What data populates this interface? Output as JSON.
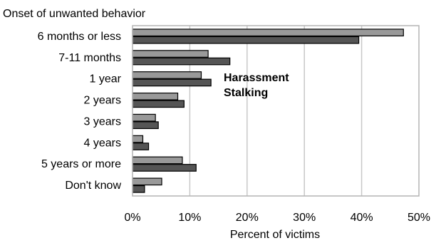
{
  "chart_data": {
    "type": "bar",
    "orientation": "horizontal",
    "title": "Onset of unwanted behavior",
    "xlabel": "Percent of victims",
    "ylabel": "",
    "categories": [
      "6 months or less",
      "7-11 months",
      "1 year",
      "2 years",
      "3 years",
      "4 years",
      "5 years or more",
      "Don't know"
    ],
    "series": [
      {
        "name": "Harassment",
        "color": "#999999",
        "values": [
          47.3,
          13.2,
          12.0,
          7.9,
          4.0,
          1.8,
          8.7,
          5.1
        ]
      },
      {
        "name": "Stalking",
        "color": "#555555",
        "values": [
          39.5,
          17.0,
          13.7,
          9.0,
          4.5,
          2.8,
          11.1,
          2.1
        ]
      }
    ],
    "xlim": [
      0,
      50
    ],
    "xticks": [
      0,
      10,
      20,
      30,
      40,
      50
    ],
    "tick_suffix": "%",
    "grid": true,
    "legend_position": "inside-center"
  }
}
